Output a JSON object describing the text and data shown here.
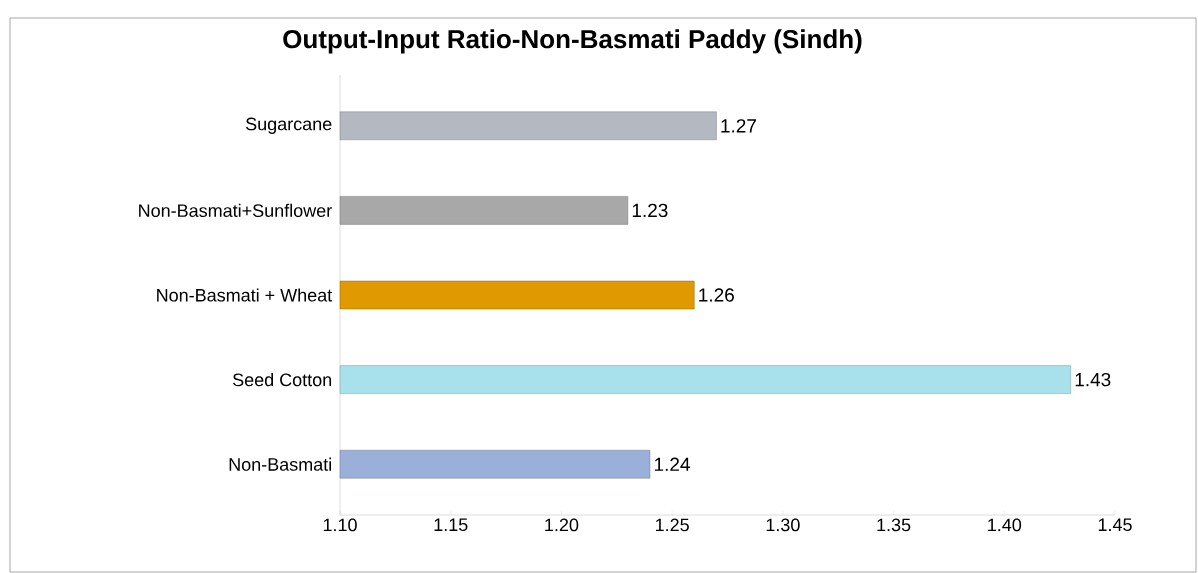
{
  "chart_data": {
    "type": "bar",
    "orientation": "horizontal",
    "title": "Output-Input Ratio-Non-Basmati Paddy (Sindh)",
    "categories": [
      "Sugarcane",
      "Non-Basmati+Sunflower",
      "Non-Basmati + Wheat",
      "Seed Cotton",
      "Non-Basmati"
    ],
    "values": [
      1.27,
      1.23,
      1.26,
      1.43,
      1.24
    ],
    "colors": [
      "#b4b8c0",
      "#a8a8a8",
      "#e09a00",
      "#a8e0ec",
      "#9ab0d8"
    ],
    "xlim": [
      1.1,
      1.45
    ],
    "xticks": [
      {
        "value": 1.1,
        "label": "1.10"
      },
      {
        "value": 1.15,
        "label": "1.15"
      },
      {
        "value": 1.2,
        "label": "1.20"
      },
      {
        "value": 1.25,
        "label": "1.25"
      },
      {
        "value": 1.3,
        "label": "1.30"
      },
      {
        "value": 1.35,
        "label": "1.35"
      },
      {
        "value": 1.4,
        "label": "1.40"
      },
      {
        "value": 1.45,
        "label": "1.45"
      }
    ],
    "data_labels": true,
    "grid": false
  }
}
